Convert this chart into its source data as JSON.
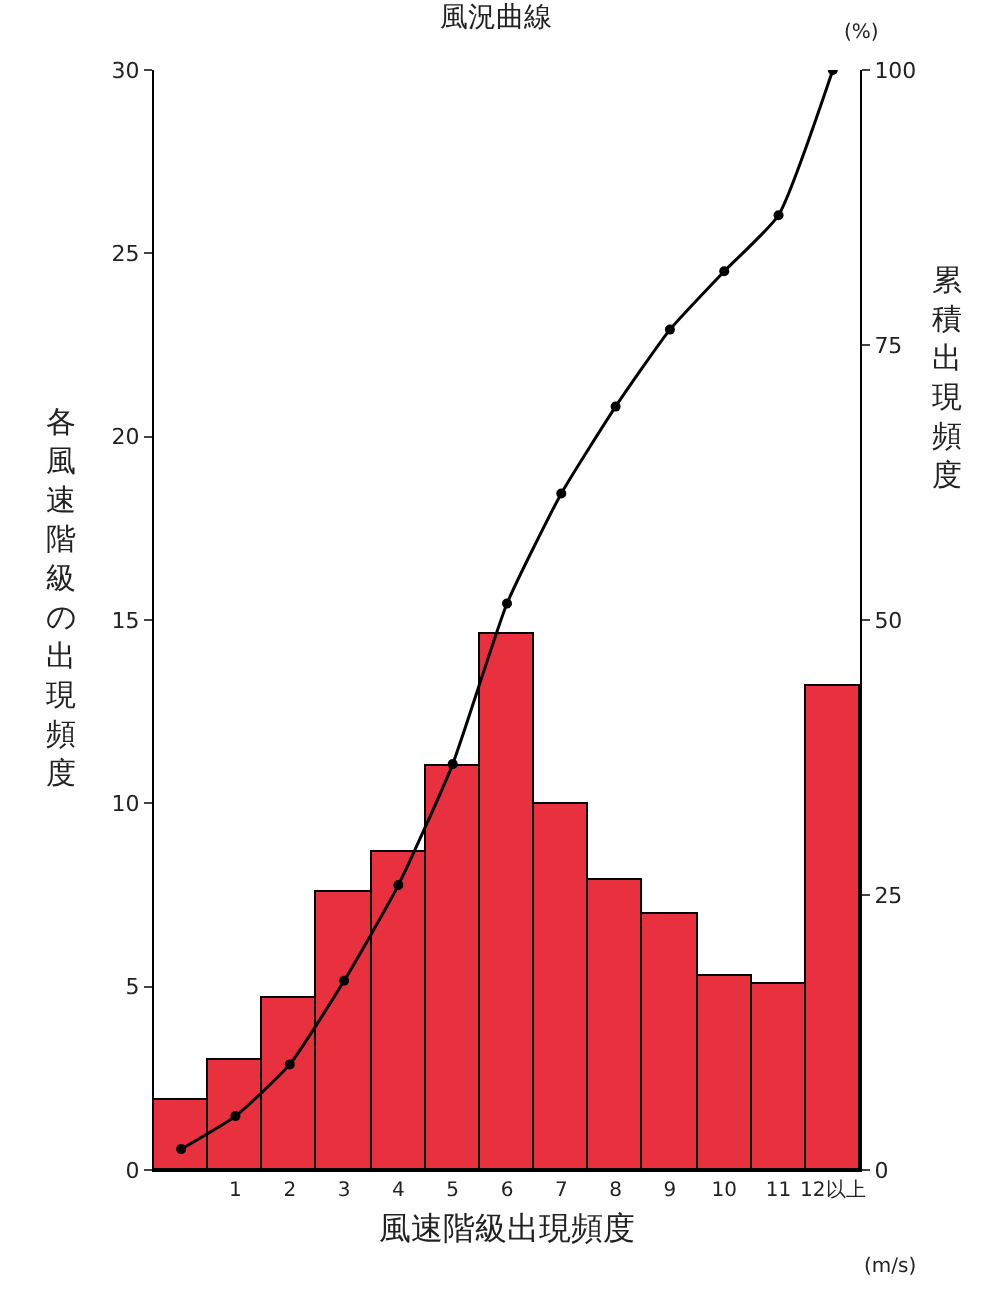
{
  "chart_data": {
    "type": "bar",
    "title": "風況曲線",
    "xlabel": "風速階級出現頻度",
    "ylabel": "各風速階級の出現頻度",
    "y2label": "累積出現頻度",
    "categories": [
      null,
      "1",
      "2",
      "3",
      "4",
      "5",
      "6",
      "7",
      "8",
      "9",
      "10",
      "11",
      "12以上"
    ],
    "series": [
      {
        "color": "#e8303f",
        "values": [
          1.9,
          3.0,
          4.7,
          7.6,
          8.7,
          11.0,
          14.6,
          10.0,
          7.9,
          7.0,
          5.3,
          5.1,
          13.2
        ]
      },
      {
        "type": "line",
        "axis": "y2",
        "color": "#000000",
        "marker": "circle",
        "values": [
          1.9,
          4.9,
          9.6,
          17.2,
          25.9,
          36.9,
          51.5,
          61.5,
          69.4,
          76.4,
          81.7,
          86.8,
          100
        ]
      }
    ],
    "ylim": [
      0,
      30
    ],
    "yticks": [
      0,
      5,
      10,
      15,
      20,
      25,
      30
    ],
    "y2lim": [
      0,
      100
    ],
    "y2ticks": [
      0,
      25,
      50,
      75,
      100
    ],
    "grid": false,
    "annotations": [
      "(%)",
      "(m/s)"
    ]
  }
}
